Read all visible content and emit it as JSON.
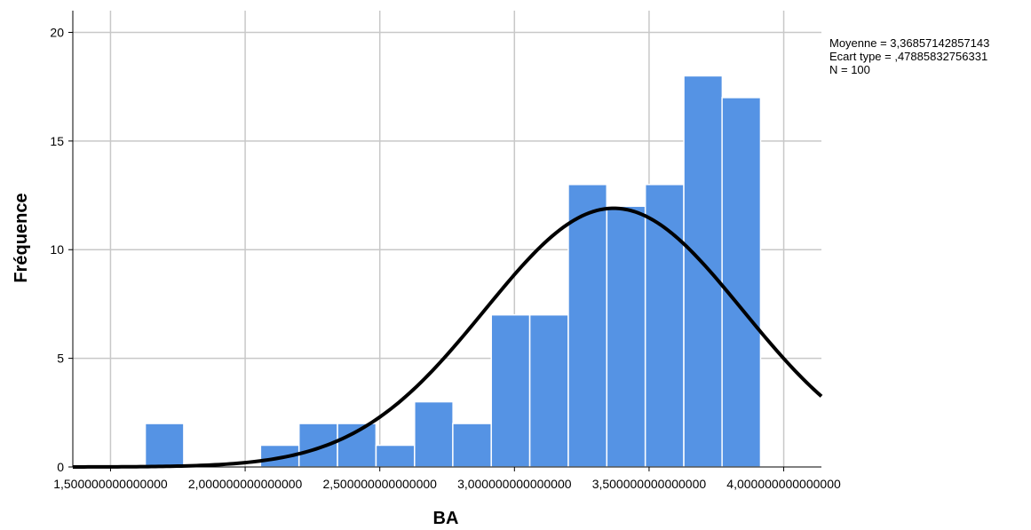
{
  "chart_data": {
    "type": "bar",
    "subtype": "histogram",
    "xlabel": "BA",
    "ylabel": "Fréquence",
    "x_ticks": [
      {
        "value": 1.5,
        "label": "1,500000000000000"
      },
      {
        "value": 2.0,
        "label": "2,000000000000000"
      },
      {
        "value": 2.5,
        "label": "2,500000000000000"
      },
      {
        "value": 3.0,
        "label": "3,000000000000000"
      },
      {
        "value": 3.5,
        "label": "3,500000000000000"
      },
      {
        "value": 4.0,
        "label": "4,000000000000000"
      }
    ],
    "y_ticks": [
      {
        "value": 0,
        "label": "0"
      },
      {
        "value": 5,
        "label": "5"
      },
      {
        "value": 10,
        "label": "10"
      },
      {
        "value": 15,
        "label": "15"
      },
      {
        "value": 20,
        "label": "20"
      }
    ],
    "xlim": [
      1.36,
      4.14
    ],
    "ylim": [
      0,
      21
    ],
    "grid": true,
    "bin_width": 0.1429,
    "bins": [
      {
        "start": 1.629,
        "count": 2
      },
      {
        "start": 1.771,
        "count": 0
      },
      {
        "start": 1.914,
        "count": 0
      },
      {
        "start": 2.057,
        "count": 1
      },
      {
        "start": 2.2,
        "count": 2
      },
      {
        "start": 2.343,
        "count": 2
      },
      {
        "start": 2.486,
        "count": 1
      },
      {
        "start": 2.629,
        "count": 3
      },
      {
        "start": 2.771,
        "count": 2
      },
      {
        "start": 2.914,
        "count": 7
      },
      {
        "start": 3.057,
        "count": 7
      },
      {
        "start": 3.2,
        "count": 13
      },
      {
        "start": 3.343,
        "count": 12
      },
      {
        "start": 3.486,
        "count": 13
      },
      {
        "start": 3.629,
        "count": 18
      },
      {
        "start": 3.771,
        "count": 17
      }
    ],
    "normal_curve": {
      "mean": 3.36857142857143,
      "sd": 0.47885832756331,
      "n": 100
    },
    "bar_color": "#5593e4",
    "curve_color": "#000000",
    "stats": {
      "mean_label": "Moyenne = 3,36857142857143",
      "sd_label": "Ecart type = ,47885832756331",
      "n_label": "N = 100"
    }
  }
}
